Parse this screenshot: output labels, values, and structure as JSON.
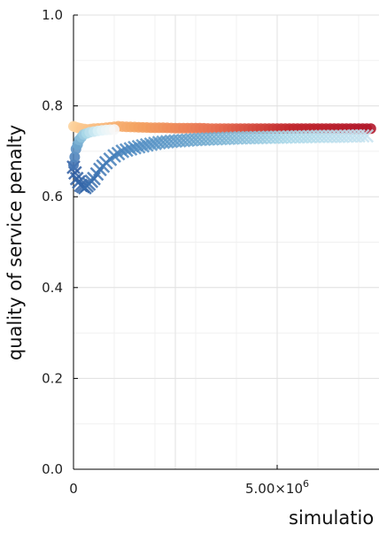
{
  "chart_data": {
    "type": "scatter",
    "title": "",
    "ylabel": "quality of service penalty",
    "xlabel": "simulatio",
    "ylim": [
      0.0,
      1.0
    ],
    "xlim": [
      0,
      7500000
    ],
    "y_ticks": [
      {
        "value": 0.0,
        "label": "0.0"
      },
      {
        "value": 0.2,
        "label": "0.2"
      },
      {
        "value": 0.4,
        "label": "0.4"
      },
      {
        "value": 0.6,
        "label": "0.6"
      },
      {
        "value": 0.8,
        "label": "0.8"
      },
      {
        "value": 1.0,
        "label": "1.0"
      }
    ],
    "x_ticks": [
      {
        "value": 0,
        "label": "0"
      },
      {
        "value": 5000000,
        "label": "5.00×10",
        "exp": "6"
      }
    ],
    "grid": true,
    "legend": "none",
    "series": [
      {
        "marker": "circle",
        "gradient": [
          "#fdd49e",
          "#f4a261",
          "#e76f51",
          "#c1272d",
          "#b2182b"
        ],
        "points": [
          [
            0,
            0.755
          ],
          [
            100000,
            0.752
          ],
          [
            200000,
            0.75
          ],
          [
            350000,
            0.748
          ],
          [
            500000,
            0.75
          ],
          [
            700000,
            0.751
          ],
          [
            900000,
            0.753
          ],
          [
            1100000,
            0.755
          ],
          [
            1300000,
            0.754
          ],
          [
            1600000,
            0.753
          ],
          [
            1900000,
            0.752
          ],
          [
            2200000,
            0.752
          ],
          [
            2500000,
            0.751
          ],
          [
            2800000,
            0.751
          ],
          [
            3100000,
            0.751
          ],
          [
            3400000,
            0.75
          ],
          [
            3700000,
            0.75
          ],
          [
            4000000,
            0.75
          ],
          [
            4300000,
            0.75
          ],
          [
            4600000,
            0.75
          ],
          [
            4900000,
            0.75
          ],
          [
            5200000,
            0.75
          ],
          [
            5500000,
            0.75
          ],
          [
            5800000,
            0.75
          ],
          [
            6100000,
            0.75
          ],
          [
            6400000,
            0.75
          ],
          [
            6700000,
            0.75
          ],
          [
            7000000,
            0.75
          ],
          [
            7300000,
            0.75
          ]
        ]
      },
      {
        "marker": "x",
        "gradient": [
          "#2c5aa0",
          "#4a87c0",
          "#74add1",
          "#abd9e9",
          "#c6e3f0"
        ],
        "points": [
          [
            0,
            0.665
          ],
          [
            80000,
            0.64
          ],
          [
            180000,
            0.625
          ],
          [
            280000,
            0.62
          ],
          [
            380000,
            0.628
          ],
          [
            500000,
            0.64
          ],
          [
            650000,
            0.66
          ],
          [
            800000,
            0.675
          ],
          [
            1000000,
            0.69
          ],
          [
            1200000,
            0.7
          ],
          [
            1500000,
            0.708
          ],
          [
            1800000,
            0.714
          ],
          [
            2100000,
            0.719
          ],
          [
            2400000,
            0.722
          ],
          [
            2700000,
            0.724
          ],
          [
            3000000,
            0.726
          ],
          [
            3300000,
            0.727
          ],
          [
            3600000,
            0.728
          ],
          [
            3900000,
            0.729
          ],
          [
            4200000,
            0.73
          ],
          [
            4500000,
            0.73
          ],
          [
            4800000,
            0.731
          ],
          [
            5100000,
            0.731
          ],
          [
            5400000,
            0.732
          ],
          [
            5700000,
            0.732
          ],
          [
            6000000,
            0.733
          ],
          [
            6300000,
            0.733
          ],
          [
            6600000,
            0.733
          ],
          [
            6900000,
            0.734
          ],
          [
            7200000,
            0.734
          ]
        ]
      },
      {
        "marker": "circle",
        "gradient": [
          "#4575b4",
          "#74add1",
          "#abd9e9",
          "#e0f3f8",
          "#f7f7f7"
        ],
        "points": [
          [
            0,
            0.67
          ],
          [
            60000,
            0.705
          ],
          [
            140000,
            0.725
          ],
          [
            250000,
            0.737
          ],
          [
            400000,
            0.742
          ],
          [
            600000,
            0.745
          ],
          [
            800000,
            0.747
          ],
          [
            1000000,
            0.748
          ]
        ]
      }
    ]
  }
}
